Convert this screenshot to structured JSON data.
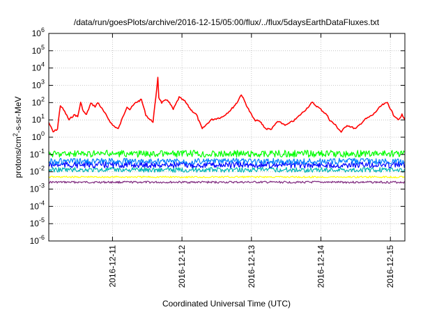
{
  "chart_data": {
    "type": "line",
    "title": "/data/run/goesPlots/archive/2016-12-15/05:00/flux/../flux/5daysEarthDataFluxes.txt",
    "xlabel": "Coordinated Universal Time (UTC)",
    "ylabel": {
      "prefix": "protons/cm",
      "sup": "2",
      "suffix": "-s-sr-MeV"
    },
    "yscale": "log",
    "ylim": [
      1e-06,
      1000000.0
    ],
    "y_ticks": [
      {
        "value": 1e-06,
        "base": "10",
        "exp": "-6"
      },
      {
        "value": 1e-05,
        "base": "10",
        "exp": "-5"
      },
      {
        "value": 0.0001,
        "base": "10",
        "exp": "-4"
      },
      {
        "value": 0.001,
        "base": "10",
        "exp": "-3"
      },
      {
        "value": 0.01,
        "base": "10",
        "exp": "-2"
      },
      {
        "value": 0.1,
        "base": "10",
        "exp": "-1"
      },
      {
        "value": 1,
        "base": "10",
        "exp": "0"
      },
      {
        "value": 10,
        "base": "10",
        "exp": "1"
      },
      {
        "value": 100,
        "base": "10",
        "exp": "2"
      },
      {
        "value": 1000,
        "base": "10",
        "exp": "3"
      },
      {
        "value": 10000,
        "base": "10",
        "exp": "4"
      },
      {
        "value": 100000,
        "base": "10",
        "exp": "5"
      },
      {
        "value": 1000000,
        "base": "10",
        "exp": "6"
      }
    ],
    "xlim": [
      "2016-12-10T02:00",
      "2016-12-15T05:00"
    ],
    "x_ticks": [
      "2016-12-11",
      "2016-12-12",
      "2016-12-13",
      "2016-12-14",
      "2016-12-15"
    ],
    "grid": true,
    "series": [
      {
        "color": "#7f2a7f",
        "x": [
          "2016-12-10T02:00",
          "2016-12-11T00:00",
          "2016-12-12T00:00",
          "2016-12-13T00:00",
          "2016-12-14T00:00",
          "2016-12-15T00:00",
          "2016-12-15T05:00"
        ],
        "y": [
          0.0025,
          0.0025,
          0.0025,
          0.0025,
          0.0025,
          0.0025,
          0.0025
        ]
      },
      {
        "color": "#ffff00",
        "x": [
          "2016-12-10T02:00",
          "2016-12-11T00:00",
          "2016-12-12T00:00",
          "2016-12-13T00:00",
          "2016-12-14T00:00",
          "2016-12-15T00:00",
          "2016-12-15T05:00"
        ],
        "y": [
          0.005,
          0.005,
          0.005,
          0.005,
          0.005,
          0.005,
          0.005
        ]
      },
      {
        "color": "#00b4b4",
        "x": [
          "2016-12-10T02:00",
          "2016-12-11T00:00",
          "2016-12-12T00:00",
          "2016-12-13T00:00",
          "2016-12-14T00:00",
          "2016-12-15T00:00",
          "2016-12-15T05:00"
        ],
        "y": [
          0.013,
          0.013,
          0.013,
          0.013,
          0.013,
          0.013,
          0.013
        ]
      },
      {
        "color": "#0000ff",
        "x": [
          "2016-12-10T02:00",
          "2016-12-11T00:00",
          "2016-12-12T00:00",
          "2016-12-13T00:00",
          "2016-12-14T00:00",
          "2016-12-15T00:00",
          "2016-12-15T05:00"
        ],
        "y": [
          0.025,
          0.025,
          0.025,
          0.025,
          0.025,
          0.025,
          0.025
        ]
      },
      {
        "color": "#0080ff",
        "x": [
          "2016-12-10T02:00",
          "2016-12-11T00:00",
          "2016-12-12T00:00",
          "2016-12-13T00:00",
          "2016-12-14T00:00",
          "2016-12-15T00:00",
          "2016-12-15T05:00"
        ],
        "y": [
          0.04,
          0.04,
          0.04,
          0.04,
          0.04,
          0.04,
          0.04
        ]
      },
      {
        "color": "#00ff00",
        "x": [
          "2016-12-10T02:00",
          "2016-12-11T00:00",
          "2016-12-12T00:00",
          "2016-12-13T00:00",
          "2016-12-14T00:00",
          "2016-12-15T00:00",
          "2016-12-15T05:00"
        ],
        "y": [
          0.11,
          0.11,
          0.11,
          0.11,
          0.11,
          0.11,
          0.11
        ]
      },
      {
        "color": "#ff0000",
        "x": [
          "2016-12-10T02:00",
          "2016-12-10T03:30",
          "2016-12-10T05:00",
          "2016-12-10T06:00",
          "2016-12-10T07:30",
          "2016-12-10T09:00",
          "2016-12-10T10:00",
          "2016-12-10T11:00",
          "2016-12-10T12:00",
          "2016-12-10T13:00",
          "2016-12-10T14:00",
          "2016-12-10T15:00",
          "2016-12-10T16:30",
          "2016-12-10T18:00",
          "2016-12-10T19:00",
          "2016-12-10T21:00",
          "2016-12-11T00:00",
          "2016-12-11T02:00",
          "2016-12-11T05:00",
          "2016-12-11T06:00",
          "2016-12-11T08:00",
          "2016-12-11T10:00",
          "2016-12-11T11:30",
          "2016-12-11T13:00",
          "2016-12-11T14:00",
          "2016-12-11T15:00",
          "2016-12-11T15:40",
          "2016-12-11T16:00",
          "2016-12-11T17:00",
          "2016-12-11T19:00",
          "2016-12-11T21:00",
          "2016-12-11T23:00",
          "2016-12-12T01:00",
          "2016-12-12T03:00",
          "2016-12-12T05:00",
          "2016-12-12T07:00",
          "2016-12-12T10:00",
          "2016-12-12T14:00",
          "2016-12-12T17:00",
          "2016-12-12T19:00",
          "2016-12-12T20:30",
          "2016-12-12T23:00",
          "2016-12-13T01:00",
          "2016-12-13T03:00",
          "2016-12-13T05:00",
          "2016-12-13T07:00",
          "2016-12-13T09:00",
          "2016-12-13T12:00",
          "2016-12-13T15:00",
          "2016-12-13T18:00",
          "2016-12-13T21:00",
          "2016-12-14T00:00",
          "2016-12-14T02:00",
          "2016-12-14T03:00",
          "2016-12-14T05:00",
          "2016-12-14T07:00",
          "2016-12-14T09:00",
          "2016-12-14T12:00",
          "2016-12-14T15:00",
          "2016-12-14T18:00",
          "2016-12-14T21:00",
          "2016-12-14T23:00",
          "2016-12-15T01:00",
          "2016-12-15T03:00",
          "2016-12-15T04:00",
          "2016-12-15T05:00"
        ],
        "y": [
          7,
          2,
          3,
          70,
          30,
          10,
          15,
          20,
          15,
          100,
          30,
          20,
          90,
          60,
          100,
          30,
          5,
          3,
          60,
          40,
          100,
          150,
          20,
          10,
          8,
          200,
          3000,
          200,
          100,
          150,
          40,
          200,
          120,
          40,
          20,
          3,
          10,
          15,
          40,
          100,
          300,
          40,
          10,
          8,
          3,
          3,
          8,
          5,
          10,
          30,
          100,
          40,
          20,
          10,
          5,
          2,
          5,
          3,
          10,
          20,
          70,
          100,
          20,
          10,
          20,
          10
        ]
      }
    ]
  }
}
